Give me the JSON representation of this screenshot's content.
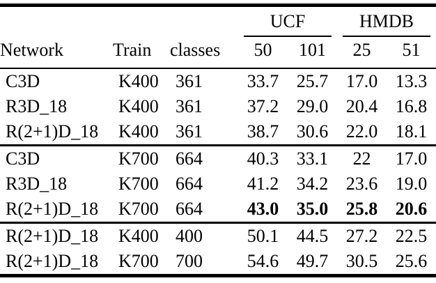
{
  "table": {
    "groups": {
      "ucf": "UCF",
      "hmdb": "HMDB"
    },
    "headers": {
      "network": "Network",
      "train": "Train",
      "classes": "classes",
      "ucf50": "50",
      "ucf101": "101",
      "hmdb25": "25",
      "hmdb51": "51"
    },
    "rows": [
      {
        "network": "C3D",
        "train": "K400",
        "classes": "361",
        "ucf50": "33.7",
        "ucf101": "25.7",
        "hmdb25": "17.0",
        "hmdb51": "13.3",
        "bold": false
      },
      {
        "network": "R3D_18",
        "train": "K400",
        "classes": "361",
        "ucf50": "37.2",
        "ucf101": "29.0",
        "hmdb25": "20.4",
        "hmdb51": "16.8",
        "bold": false
      },
      {
        "network": "R(2+1)D_18",
        "train": "K400",
        "classes": "361",
        "ucf50": "38.7",
        "ucf101": "30.6",
        "hmdb25": "22.0",
        "hmdb51": "18.1",
        "bold": false
      },
      {
        "network": "C3D",
        "train": "K700",
        "classes": "664",
        "ucf50": "40.3",
        "ucf101": "33.1",
        "hmdb25": "22",
        "hmdb51": "17.0",
        "bold": false
      },
      {
        "network": "R3D_18",
        "train": "K700",
        "classes": "664",
        "ucf50": "41.2",
        "ucf101": "34.2",
        "hmdb25": "23.6",
        "hmdb51": "19.0",
        "bold": false
      },
      {
        "network": "R(2+1)D_18",
        "train": "K700",
        "classes": "664",
        "ucf50": "43.0",
        "ucf101": "35.0",
        "hmdb25": "25.8",
        "hmdb51": "20.6",
        "bold": true
      },
      {
        "network": "R(2+1)D_18",
        "train": "K400",
        "classes": "400",
        "ucf50": "50.1",
        "ucf101": "44.5",
        "hmdb25": "27.2",
        "hmdb51": "22.5",
        "bold": false
      },
      {
        "network": "R(2+1)D_18",
        "train": "K700",
        "classes": "700",
        "ucf50": "54.6",
        "ucf101": "49.7",
        "hmdb25": "30.5",
        "hmdb51": "25.6",
        "bold": false
      }
    ],
    "colors": {
      "rule": "#000000",
      "background": "#ffffff",
      "text": "#000000"
    }
  }
}
